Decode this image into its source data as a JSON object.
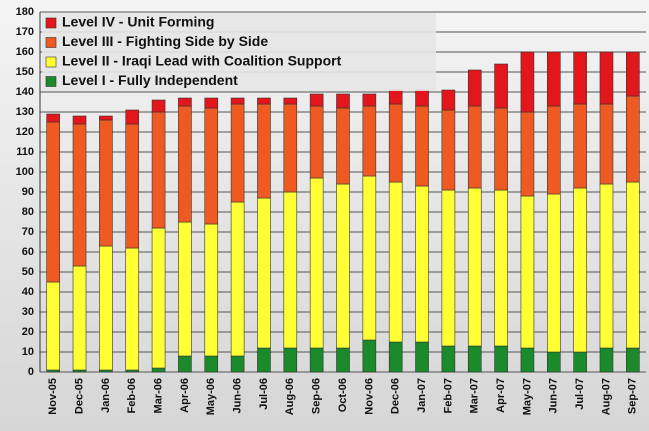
{
  "chart_data": {
    "type": "stacked_bar",
    "categories": [
      "Nov-05",
      "Dec-05",
      "Jan-06",
      "Feb-06",
      "Mar-06",
      "Apr-06",
      "May-06",
      "Jun-06",
      "Jul-06",
      "Aug-06",
      "Sep-06",
      "Oct-06",
      "Nov-06",
      "Dec-06",
      "Jan-07",
      "Feb-07",
      "Mar-07",
      "Apr-07",
      "May-07",
      "Jun-07",
      "Jul-07",
      "Aug-07",
      "Sep-07"
    ],
    "series": [
      {
        "name": "Level I  -  Fully Independent",
        "color": "#1a8a2a",
        "values": [
          1,
          1,
          1,
          1,
          2,
          8,
          8,
          8,
          12,
          12,
          12,
          12,
          16,
          15,
          15,
          13,
          13,
          13,
          12,
          10,
          10,
          12,
          12
        ]
      },
      {
        "name": "Level II  -  Iraqi Lead with Coalition Support",
        "color": "#ffff33",
        "values": [
          44,
          52,
          62,
          61,
          70,
          67,
          66,
          77,
          75,
          78,
          85,
          82,
          82,
          80,
          78,
          78,
          79,
          78,
          76,
          79,
          82,
          82,
          83
        ]
      },
      {
        "name": "Level III  -  Fighting Side by Side",
        "color": "#ef5a22",
        "values": [
          80,
          71,
          63,
          62,
          58,
          58,
          58,
          49,
          47,
          44,
          36,
          38,
          35,
          39,
          40,
          40,
          41,
          41,
          42,
          44,
          42,
          40,
          43
        ]
      },
      {
        "name": "Level IV  -  Unit Forming",
        "color": "#e3161c",
        "values": [
          4,
          4,
          2,
          7,
          6,
          4,
          5,
          3,
          3,
          3,
          6,
          7,
          6,
          7,
          8,
          10,
          18,
          22,
          30,
          27,
          26,
          26,
          22
        ]
      }
    ],
    "ylim": [
      0,
      180
    ],
    "yticks": [
      0,
      10,
      20,
      30,
      40,
      50,
      60,
      70,
      80,
      90,
      100,
      110,
      120,
      130,
      140,
      150,
      160,
      170,
      180
    ],
    "grid": true,
    "legend": "top-left"
  }
}
